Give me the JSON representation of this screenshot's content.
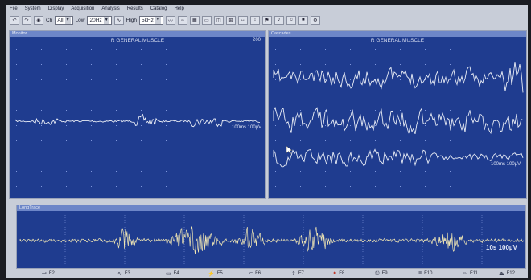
{
  "menu": [
    "File",
    "System",
    "Display",
    "Acquisition",
    "Analysis",
    "Results",
    "Catalog",
    "Help"
  ],
  "toolbar": {
    "ch_label": "Ch",
    "ch_value": "All",
    "low_label": "Low",
    "low_value": "20Hz",
    "high_label": "High",
    "high_value": "5kHz"
  },
  "monitor": {
    "title": "Monitor",
    "muscle": "R GENERAL MUSCLE",
    "count": "200",
    "scale": "100ms 100µV"
  },
  "cascades": {
    "title": "Cascades",
    "muscle": "R GENERAL MUSCLE",
    "scale": "100ms 100µV"
  },
  "longtrace": {
    "title": "LongTrace",
    "scale": "10s 100µV"
  },
  "function_keys": [
    "F2",
    "F3",
    "F4",
    "F5",
    "F6",
    "F7",
    "F8",
    "F9",
    "F10",
    "F11",
    "F12"
  ],
  "colors": {
    "panel_bg": "#1f3c8f",
    "title_bar": "#6d86c8",
    "trace": "#e8ecf5",
    "longtrace_trace": "#f0e6b4"
  }
}
